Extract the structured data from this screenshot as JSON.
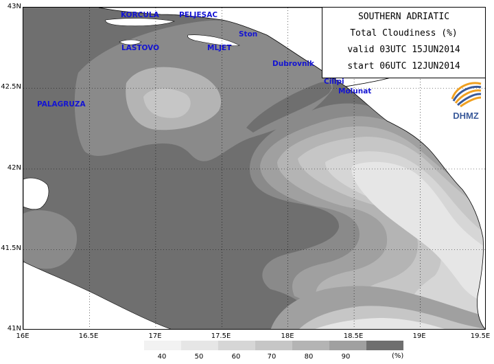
{
  "title": {
    "line1": "SOUTHERN ADRIATIC",
    "line2": "Total Cloudiness (%)",
    "line3": "valid 03UTC 15JUN2014",
    "line4": "start 06UTC 12JUN2014"
  },
  "logo": {
    "text": "DHMZ",
    "icon": "dhmz-swirl-logo"
  },
  "axes": {
    "lat_ticks": [
      "43N",
      "42.5N",
      "42N",
      "41.5N",
      "41N"
    ],
    "lon_ticks": [
      "16E",
      "16.5E",
      "17E",
      "17.5E",
      "18E",
      "18.5E",
      "19E",
      "19.5E"
    ],
    "lat_range": [
      41.0,
      43.0
    ],
    "lon_range": [
      16.0,
      19.5
    ],
    "grid": true,
    "grid_style": "dotted"
  },
  "places": [
    {
      "id": "korcula",
      "label": "KORCULA"
    },
    {
      "id": "peljesac",
      "label": "PELJESAC"
    },
    {
      "id": "ston",
      "label": "Ston"
    },
    {
      "id": "lastovo",
      "label": "LASTOVO"
    },
    {
      "id": "mljet",
      "label": "MLJET"
    },
    {
      "id": "dubrovnik",
      "label": "Dubrovnik"
    },
    {
      "id": "cilipi",
      "label": "Cilipi"
    },
    {
      "id": "molunat",
      "label": "Molunat"
    },
    {
      "id": "palagruza",
      "label": "PALAGRUZA"
    }
  ],
  "legend": {
    "levels": [
      {
        "label": "40",
        "color": "#e6e6e6"
      },
      {
        "label": "50",
        "color": "#d6d6d6"
      },
      {
        "label": "60",
        "color": "#c6c6c6"
      },
      {
        "label": "70",
        "color": "#b4b4b4"
      },
      {
        "label": "80",
        "color": "#a0a0a0"
      },
      {
        "label": "90",
        "color": "#8a8a8a"
      }
    ],
    "top_color": "#6f6f6f",
    "unit": "(%)"
  },
  "colors": {
    "sea_background": "#6f6f6f",
    "land": "#ffffff",
    "coastline": "#000000",
    "label_blue": "#1414d2",
    "logo_blue": "#3a5a9a",
    "logo_orange": "#f0a020"
  }
}
